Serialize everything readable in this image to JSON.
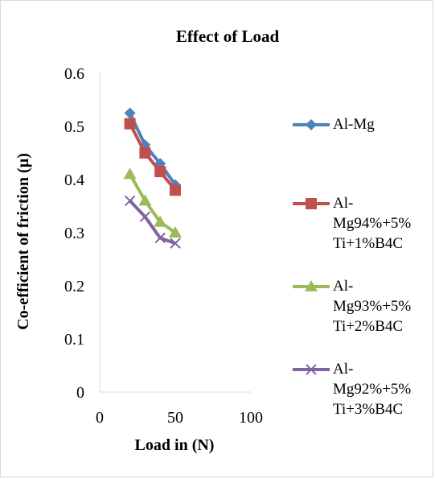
{
  "chart_data": {
    "type": "line",
    "title": "Effect of Load",
    "xlabel": "Load in (N)",
    "ylabel": "Co-efficient of friction (µ)",
    "xlim": [
      0,
      100
    ],
    "ylim": [
      0,
      0.6
    ],
    "x_ticks": [
      "0",
      "50",
      "100"
    ],
    "y_ticks": [
      "0",
      "0.1",
      "0.2",
      "0.3",
      "0.4",
      "0.5",
      "0.6"
    ],
    "grid": false,
    "legend_position": "right",
    "x": [
      20,
      30,
      40,
      50
    ],
    "series": [
      {
        "name": "Al-Mg",
        "values": [
          0.525,
          0.465,
          0.43,
          0.39
        ],
        "color": "#4f81bd",
        "marker": "diamond"
      },
      {
        "name": "Al-Mg94%+5%Ti+1%B4C",
        "values": [
          0.505,
          0.45,
          0.415,
          0.38
        ],
        "color": "#c0504d",
        "marker": "square"
      },
      {
        "name": "Al-Mg93%+5%Ti+2%B4C",
        "values": [
          0.41,
          0.36,
          0.32,
          0.3
        ],
        "color": "#9bbb59",
        "marker": "triangle"
      },
      {
        "name": "Al-Mg92%+5%Ti+3%B4C",
        "values": [
          0.36,
          0.33,
          0.29,
          0.28
        ],
        "color": "#8064a2",
        "marker": "x"
      }
    ],
    "legend_lines": [
      [
        "Al-Mg"
      ],
      [
        "Al-",
        "Mg94%+5%",
        "Ti+1%B4C"
      ],
      [
        "Al-",
        "Mg93%+5%",
        "Ti+2%B4C"
      ],
      [
        "Al-",
        "Mg92%+5%",
        "Ti+3%B4C"
      ]
    ]
  }
}
